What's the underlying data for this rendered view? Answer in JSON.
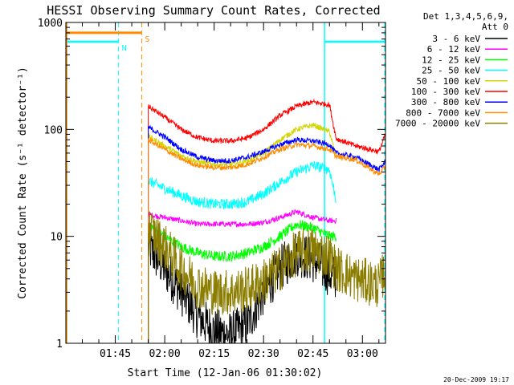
{
  "footer_date": "20-Dec-2009 19:17",
  "chart_data": {
    "type": "line",
    "title": "HESSI Observing Summary Count Rates, Corrected",
    "xlabel": "Start Time (12-Jan-06 01:30:02)",
    "ylabel": "Corrected Count Rate (s⁻¹ detector⁻¹)",
    "yscale": "log",
    "ylim": [
      1,
      1000
    ],
    "xlim": [
      0,
      97
    ],
    "x_ticks": [
      {
        "x": 15,
        "label": "01:45"
      },
      {
        "x": 30,
        "label": "02:00"
      },
      {
        "x": 45,
        "label": "02:15"
      },
      {
        "x": 60,
        "label": "02:30"
      },
      {
        "x": 75,
        "label": "02:45"
      },
      {
        "x": 90,
        "label": "03:00"
      }
    ],
    "y_ticks": [
      {
        "y": 1,
        "label": "1"
      },
      {
        "y": 10,
        "label": "10"
      },
      {
        "y": 100,
        "label": "100"
      },
      {
        "y": 1000,
        "label": "1000"
      }
    ],
    "legend": {
      "header": [
        "Det 1,3,4,5,6,9,",
        "Att 0"
      ],
      "position": "right"
    },
    "data_gap": [
      22,
      25
    ],
    "series": [
      {
        "name": "3 - 6 keV",
        "color": "#000000",
        "x": [
          25,
          30,
          35,
          40,
          45,
          50,
          55,
          60,
          65,
          70,
          75,
          80,
          82
        ],
        "y": [
          8,
          5,
          3,
          1.8,
          1.3,
          1.2,
          1.5,
          3,
          5,
          7,
          6,
          4.5,
          4
        ]
      },
      {
        "name": "6 - 12 keV",
        "color": "#ff00ff",
        "x": [
          25,
          30,
          35,
          40,
          45,
          50,
          55,
          60,
          65,
          70,
          75,
          80,
          82
        ],
        "y": [
          16,
          15,
          14,
          13,
          13,
          13,
          13,
          13.5,
          15,
          17,
          15,
          14,
          14
        ]
      },
      {
        "name": "12 - 25 keV",
        "color": "#00ff00",
        "x": [
          25,
          30,
          35,
          40,
          45,
          50,
          55,
          60,
          65,
          70,
          75,
          80,
          82
        ],
        "y": [
          13,
          10,
          8,
          7,
          6.5,
          6.5,
          7,
          8,
          10,
          13,
          12,
          10,
          10
        ]
      },
      {
        "name": "25 - 50 keV",
        "color": "#00ffff",
        "x": [
          25,
          30,
          35,
          40,
          45,
          50,
          55,
          60,
          65,
          70,
          75,
          80,
          82
        ],
        "y": [
          33,
          28,
          24,
          21,
          20,
          20,
          21,
          25,
          32,
          40,
          46,
          42,
          22
        ]
      },
      {
        "name": "50 - 100 keV",
        "color": "#d4d400",
        "x": [
          25,
          30,
          35,
          40,
          45,
          50,
          55,
          60,
          65,
          70,
          75,
          80,
          82
        ],
        "y": [
          86,
          70,
          57,
          50,
          47,
          47,
          50,
          60,
          80,
          100,
          110,
          95,
          55
        ]
      },
      {
        "name": "100 - 300 keV",
        "color": "#ff0000",
        "x": [
          25,
          30,
          35,
          40,
          45,
          50,
          55,
          60,
          65,
          70,
          75,
          80,
          82,
          88,
          95,
          97
        ],
        "y": [
          165,
          130,
          100,
          84,
          78,
          78,
          83,
          100,
          135,
          165,
          180,
          170,
          82,
          70,
          62,
          90
        ]
      },
      {
        "name": "300 - 800 keV",
        "color": "#0000ff",
        "x": [
          25,
          30,
          35,
          40,
          45,
          50,
          55,
          60,
          65,
          70,
          75,
          80,
          82,
          88,
          95,
          97
        ],
        "y": [
          105,
          85,
          65,
          55,
          51,
          51,
          55,
          62,
          72,
          80,
          78,
          72,
          60,
          55,
          42,
          50
        ]
      },
      {
        "name": "800 - 7000 keV",
        "color": "#ff8c00",
        "x": [
          25,
          30,
          35,
          40,
          45,
          50,
          55,
          60,
          65,
          70,
          75,
          80,
          82,
          88,
          95,
          97
        ],
        "y": [
          80,
          65,
          53,
          46,
          44,
          44,
          47,
          55,
          65,
          72,
          70,
          65,
          56,
          52,
          38,
          45
        ]
      },
      {
        "name": "7000 - 20000 keV",
        "color": "#8b7d00",
        "x": [
          25,
          30,
          35,
          40,
          45,
          50,
          55,
          60,
          65,
          70,
          75,
          80,
          82,
          88,
          95,
          97
        ],
        "y": [
          12,
          8,
          5,
          3.5,
          3,
          3,
          3.2,
          3.8,
          5,
          7,
          7.5,
          6.5,
          5,
          4,
          3.5,
          5
        ]
      }
    ],
    "flags": [
      {
        "label": "N",
        "color": "#00ffff",
        "segments": [
          {
            "from": 0,
            "to": 16
          },
          {
            "from": 78.5,
            "to": 97
          }
        ],
        "level": 660
      },
      {
        "label": "S",
        "color": "#ff8c00",
        "segments": [
          {
            "from": 0,
            "to": 23
          }
        ],
        "level": 800
      }
    ]
  }
}
